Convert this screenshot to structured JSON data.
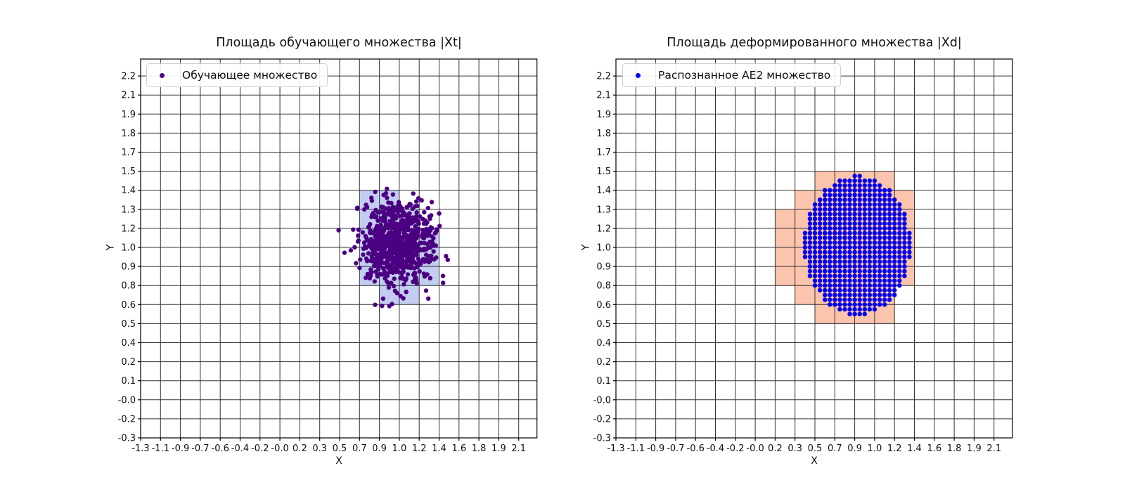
{
  "figure": {
    "background": "#ffffff",
    "grid_color": "#333333",
    "axis_color": "#000000",
    "text_color": "#101010"
  },
  "chart_data": [
    {
      "type": "scatter",
      "title": "Площадь обучающего множества |Xt|",
      "xlabel": "X",
      "ylabel": "Y",
      "grid": true,
      "x_range": [
        -1.3,
        2.1
      ],
      "y_range": [
        -0.3,
        2.2
      ],
      "x_tick_labels": [
        "-1.3",
        "-1.1",
        "-0.9",
        "-0.7",
        "-0.6",
        "-0.4",
        "-0.2",
        "-0.0",
        "0.2",
        "0.3",
        "0.5",
        "0.7",
        "0.9",
        "1.0",
        "1.2",
        "1.4",
        "1.6",
        "1.8",
        "1.9",
        "2.1"
      ],
      "y_tick_labels": [
        "-0.3",
        "-0.2",
        "-0.0",
        "0.1",
        "0.2",
        "0.4",
        "0.5",
        "0.6",
        "0.8",
        "0.9",
        "1.0",
        "1.2",
        "1.3",
        "1.4",
        "1.5",
        "1.7",
        "1.8",
        "1.9",
        "2.1",
        "2.2"
      ],
      "legend": {
        "position": "upper left",
        "entries": [
          {
            "label": "Обучающее множество",
            "marker": "dot",
            "color": "#4b0082"
          }
        ]
      },
      "series": [
        {
          "name": "Обучающее множество",
          "kind": "gaussian-cluster",
          "n_points": 800,
          "mean": [
            1.0,
            1.05
          ],
          "std": [
            0.16,
            0.14
          ],
          "seed": 42,
          "color": "#4b0082",
          "marker_radius_px": 3.2
        }
      ],
      "shaded_cells": {
        "fill": "#c3cdf1",
        "note": "highlighted grid cells; each entry is [x_tick_index, y_tick_index] of the cell's lower-left tick",
        "cells": [
          [
            11,
            12
          ],
          [
            12,
            12
          ],
          [
            11,
            11
          ],
          [
            12,
            11
          ],
          [
            13,
            11
          ],
          [
            11,
            10
          ],
          [
            12,
            10
          ],
          [
            13,
            10
          ],
          [
            14,
            10
          ],
          [
            11,
            9
          ],
          [
            12,
            9
          ],
          [
            13,
            9
          ],
          [
            14,
            9
          ],
          [
            11,
            8
          ],
          [
            12,
            8
          ],
          [
            13,
            8
          ],
          [
            14,
            8
          ],
          [
            12,
            7
          ],
          [
            13,
            7
          ]
        ]
      }
    },
    {
      "type": "scatter",
      "title": "Площадь деформированного множества |Xd|",
      "xlabel": "X",
      "ylabel": "Y",
      "grid": true,
      "x_range": [
        -1.3,
        2.1
      ],
      "y_range": [
        -0.3,
        2.2
      ],
      "x_tick_labels": [
        "-1.3",
        "-1.1",
        "-0.9",
        "-0.7",
        "-0.6",
        "-0.4",
        "-0.2",
        "-0.0",
        "0.2",
        "0.3",
        "0.5",
        "0.7",
        "0.9",
        "1.0",
        "1.2",
        "1.4",
        "1.6",
        "1.8",
        "1.9",
        "2.1"
      ],
      "y_tick_labels": [
        "-0.3",
        "-0.2",
        "-0.0",
        "0.1",
        "0.2",
        "0.4",
        "0.5",
        "0.6",
        "0.8",
        "0.9",
        "1.0",
        "1.2",
        "1.3",
        "1.4",
        "1.5",
        "1.7",
        "1.8",
        "1.9",
        "2.1",
        "2.2"
      ],
      "legend": {
        "position": "upper left",
        "entries": [
          {
            "label": "Распознанное AE2 множество",
            "marker": "dot",
            "color": "#0000ee"
          }
        ]
      },
      "series": [
        {
          "name": "Распознанное AE2 множество",
          "kind": "lattice-ellipse",
          "center": [
            0.87,
            1.03
          ],
          "radius": [
            0.48,
            0.48
          ],
          "spacing": [
            0.044737,
            0.032895
          ],
          "color": "#0000ee",
          "marker_radius_px": 3.2
        }
      ],
      "shaded_cells": {
        "fill": "#fbc5ad",
        "note": "highlighted grid cells; each entry is [x_tick_index, y_tick_index] of the cell's lower-left tick",
        "cells": [
          [
            10,
            6
          ],
          [
            11,
            6
          ],
          [
            12,
            6
          ],
          [
            13,
            6
          ],
          [
            9,
            7
          ],
          [
            10,
            7
          ],
          [
            11,
            7
          ],
          [
            12,
            7
          ],
          [
            13,
            7
          ],
          [
            8,
            8
          ],
          [
            9,
            8
          ],
          [
            10,
            8
          ],
          [
            11,
            8
          ],
          [
            12,
            8
          ],
          [
            13,
            8
          ],
          [
            14,
            8
          ],
          [
            8,
            9
          ],
          [
            9,
            9
          ],
          [
            10,
            9
          ],
          [
            11,
            9
          ],
          [
            12,
            9
          ],
          [
            13,
            9
          ],
          [
            14,
            9
          ],
          [
            8,
            10
          ],
          [
            9,
            10
          ],
          [
            10,
            10
          ],
          [
            11,
            10
          ],
          [
            12,
            10
          ],
          [
            13,
            10
          ],
          [
            14,
            10
          ],
          [
            8,
            11
          ],
          [
            9,
            11
          ],
          [
            10,
            11
          ],
          [
            11,
            11
          ],
          [
            12,
            11
          ],
          [
            13,
            11
          ],
          [
            14,
            11
          ],
          [
            9,
            12
          ],
          [
            10,
            12
          ],
          [
            11,
            12
          ],
          [
            12,
            12
          ],
          [
            13,
            12
          ],
          [
            14,
            12
          ],
          [
            10,
            13
          ],
          [
            11,
            13
          ],
          [
            12,
            13
          ],
          [
            13,
            13
          ]
        ]
      }
    }
  ]
}
